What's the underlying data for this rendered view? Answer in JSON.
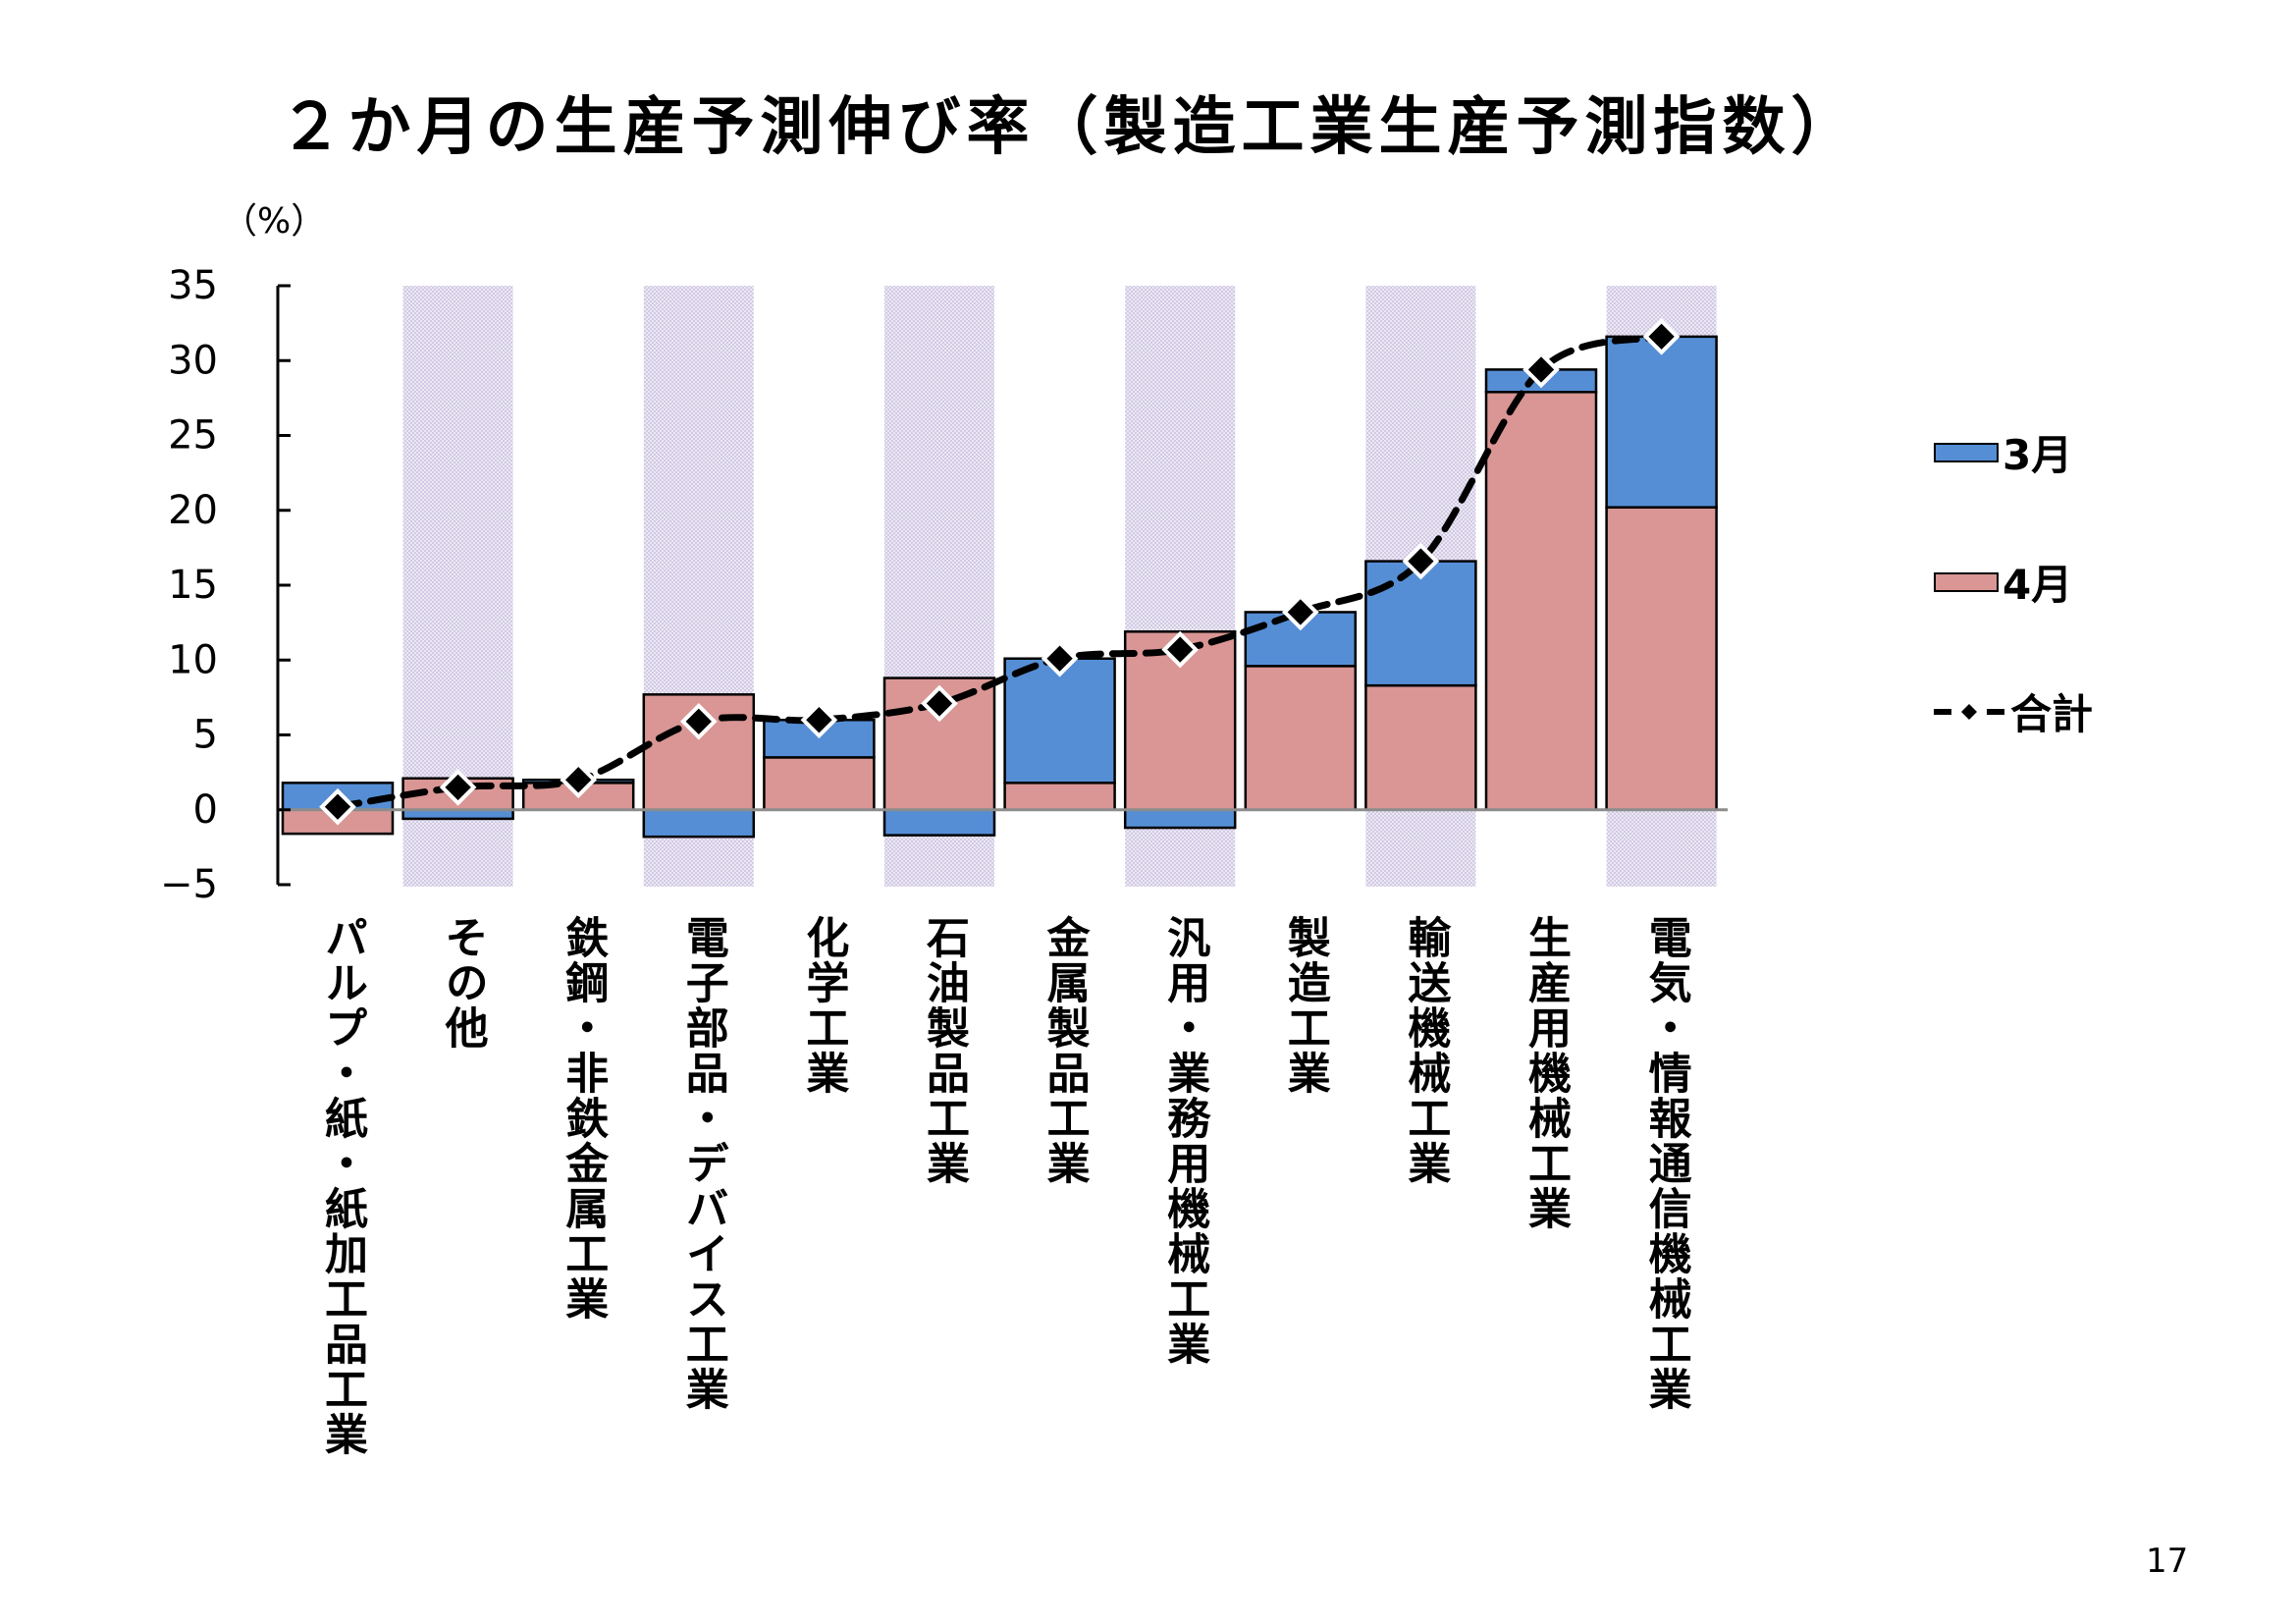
{
  "title": "２か月の生産予測伸び率（製造工業生産予測指数）",
  "unit_label": "（%）",
  "page_number": "17",
  "colors": {
    "march": "#558ED5",
    "april": "#D99694",
    "total_line": "#000000",
    "band": "#DCD6EC",
    "zero_line": "#8C8C8C"
  },
  "chart_data": {
    "type": "bar",
    "stacked": true,
    "title": "２か月の生産予測伸び率（製造工業生産予測指数）",
    "ylabel": "（%）",
    "xlabel": "",
    "ylim": [
      -5,
      35
    ],
    "yticks": [
      35,
      30,
      25,
      20,
      15,
      10,
      5,
      0,
      -5
    ],
    "ytick_labels": [
      "35",
      "30",
      "25",
      "20",
      "15",
      "10",
      "5",
      "0",
      "−5"
    ],
    "grid": false,
    "alternating_bands": true,
    "legend_position": "right",
    "categories": [
      "パルプ・紙・紙加工品工業",
      "その他",
      "鉄鋼・非鉄金属工業",
      "電子部品・デバイス工業",
      "化学工業",
      "石油製品工業",
      "金属製品工業",
      "汎用・業務用機械工業",
      "製造工業",
      "輸送機械工業",
      "生産用機械工業",
      "電気・情報通信機械工業"
    ],
    "series": [
      {
        "name": "3月",
        "type": "bar",
        "color": "#558ED5",
        "values": [
          1.8,
          -0.6,
          0.2,
          -1.8,
          2.5,
          -1.7,
          8.3,
          -1.2,
          3.6,
          8.3,
          1.5,
          11.4
        ]
      },
      {
        "name": "4月",
        "type": "bar",
        "color": "#D99694",
        "values": [
          -1.6,
          2.1,
          1.8,
          7.7,
          3.5,
          8.8,
          1.8,
          11.9,
          9.6,
          8.3,
          27.9,
          20.2
        ]
      },
      {
        "name": "合計",
        "type": "line",
        "style": "dashed",
        "marker": "diamond",
        "color": "#000000",
        "values": [
          0.2,
          1.5,
          2.0,
          5.9,
          6.0,
          7.1,
          10.1,
          10.7,
          13.2,
          16.6,
          29.4,
          31.6
        ]
      }
    ],
    "legend": [
      "3月",
      "4月",
      "合計"
    ]
  }
}
